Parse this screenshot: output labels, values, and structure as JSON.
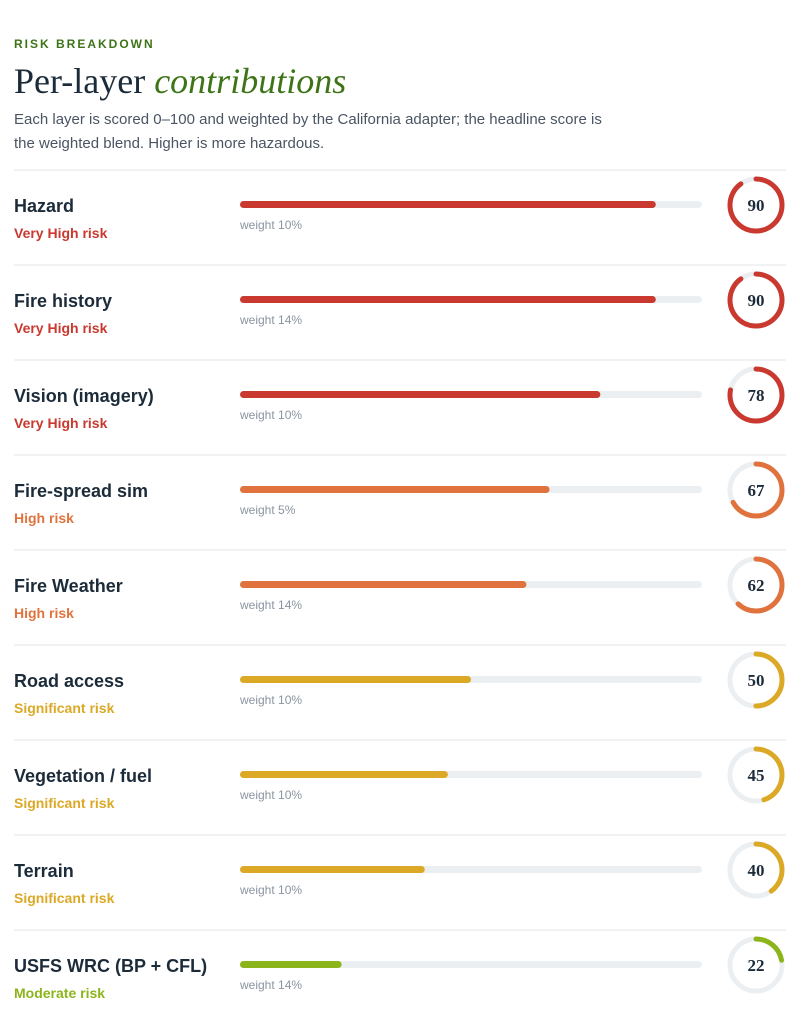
{
  "header": {
    "eyebrow": "RISK BREAKDOWN",
    "title_lead": "Per-layer",
    "title_emphasis": "contributions",
    "description": "Each layer is scored 0–100 and weighted by the California adapter; the headline score is the weighted blend. Higher is more hazardous."
  },
  "scale": [
    0,
    100
  ],
  "rows": [
    {
      "name": "Hazard",
      "risk": "Very High risk",
      "weight": "weight 10%",
      "score": 90,
      "color": "#c9392f"
    },
    {
      "name": "Fire history",
      "risk": "Very High risk",
      "weight": "weight 14%",
      "score": 90,
      "color": "#c9392f"
    },
    {
      "name": "Vision (imagery)",
      "risk": "Very High risk",
      "weight": "weight 10%",
      "score": 78,
      "color": "#c9392f"
    },
    {
      "name": "Fire-spread sim",
      "risk": "High risk",
      "weight": "weight 5%",
      "score": 67,
      "color": "#e0733d"
    },
    {
      "name": "Fire Weather",
      "risk": "High risk",
      "weight": "weight 14%",
      "score": 62,
      "color": "#e0733d"
    },
    {
      "name": "Road access",
      "risk": "Significant risk",
      "weight": "weight 10%",
      "score": 50,
      "color": "#dba925"
    },
    {
      "name": "Vegetation / fuel",
      "risk": "Significant risk",
      "weight": "weight 10%",
      "score": 45,
      "color": "#dba925"
    },
    {
      "name": "Terrain",
      "risk": "Significant risk",
      "weight": "weight 10%",
      "score": 40,
      "color": "#dba925"
    },
    {
      "name": "USFS WRC (BP + CFL)",
      "risk": "Moderate risk",
      "weight": "weight 14%",
      "score": 22,
      "color": "#8cb41b"
    }
  ]
}
